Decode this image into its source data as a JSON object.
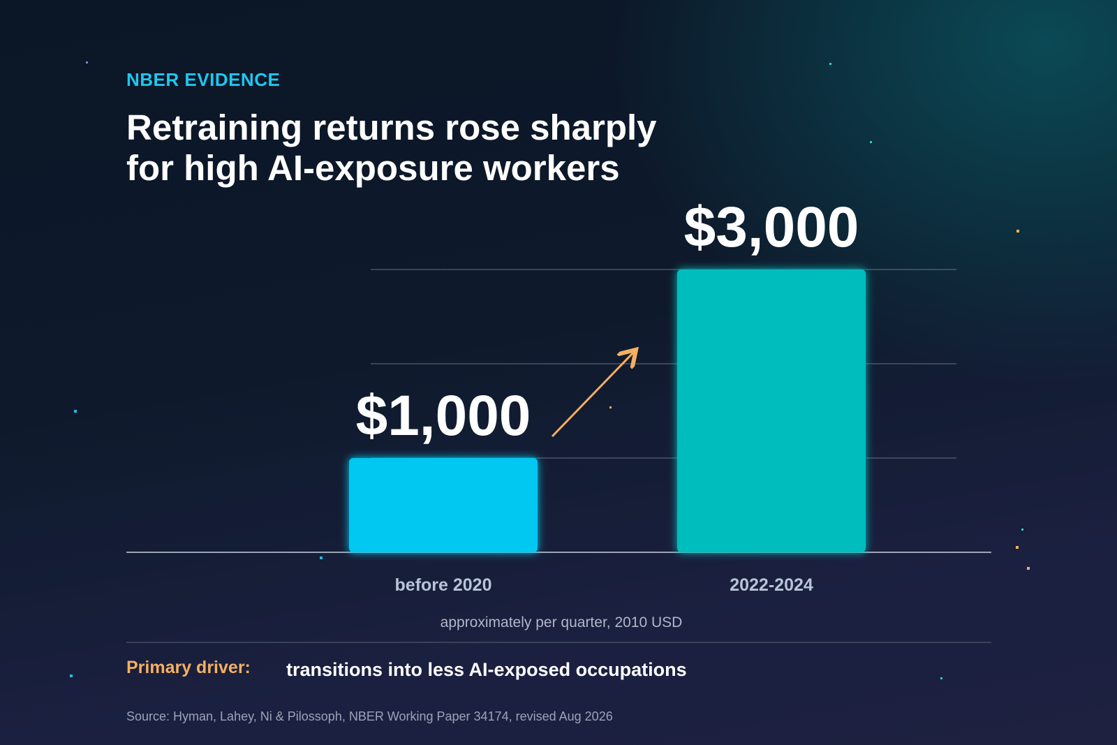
{
  "chart_data": {
    "type": "bar",
    "kicker": "NBER EVIDENCE",
    "title": "Retraining returns rose sharply for high AI-exposure workers",
    "categories": [
      "before 2020",
      "2022-2024"
    ],
    "values": [
      1000,
      3000
    ],
    "value_labels": [
      "$1,000",
      "$3,000"
    ],
    "colors": [
      "#00c8f0",
      "#00bdbd"
    ],
    "ylim": [
      0,
      3000
    ],
    "yticks": [
      0,
      1000,
      2000,
      3000
    ],
    "grid": true,
    "axis_note": "approximately per quarter, 2010 USD"
  },
  "footer": {
    "driver_label": "Primary driver:",
    "driver_text": "transitions into less AI-exposed occupations",
    "source": "Source: Hyman, Lahey, Ni & Pilossoph, NBER Working Paper 34174, revised Aug 2026"
  }
}
